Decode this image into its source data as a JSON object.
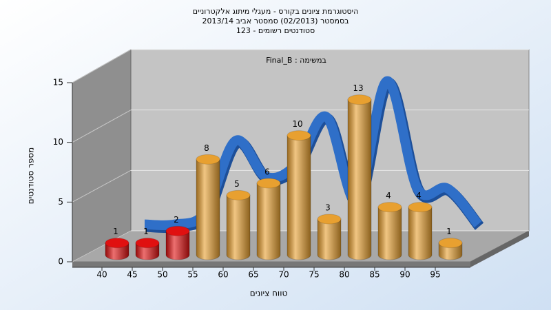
{
  "chart_data": {
    "type": "bar3d",
    "title": [
      "היסטוגרמת ציונים בקורס - מעגלי מיתוג אלקטרוניים",
      "בסמסטר  (02/2013)  סמסטר אביב 2013/14",
      "סטודנטים רשומים - 123"
    ],
    "annotation": "Final_B : במשימה",
    "xlabel": "טווח ציונים",
    "ylabel": "מספר סטודנטים",
    "categories": [
      "40",
      "45",
      "50",
      "55",
      "60",
      "65",
      "70",
      "75",
      "80",
      "85",
      "90",
      "95"
    ],
    "values": [
      1,
      1,
      2,
      8,
      5,
      6,
      10,
      3,
      13,
      4,
      4,
      1
    ],
    "colors": [
      "#e01010",
      "#e01010",
      "#e01010",
      "#e8a030",
      "#e8a030",
      "#e8a030",
      "#e8a030",
      "#e8a030",
      "#e8a030",
      "#e8a030",
      "#e8a030",
      "#e8a030"
    ],
    "line": {
      "color": "#2f6fc8",
      "values": [
        1,
        1,
        2,
        8,
        5,
        6,
        10,
        3,
        13,
        4,
        4,
        1
      ]
    },
    "ylim": [
      0,
      15
    ],
    "yticks": [
      0,
      5,
      10,
      15
    ],
    "grid": true
  }
}
